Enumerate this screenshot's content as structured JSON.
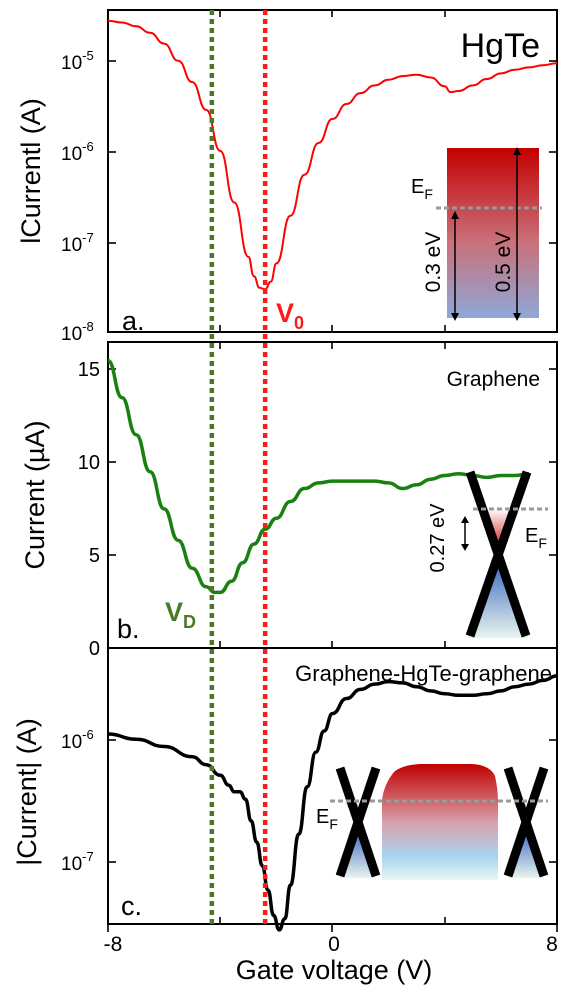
{
  "x_axis": {
    "label": "Gate voltage (V)",
    "range": [
      -8,
      8
    ],
    "ticks": [
      -8,
      -4,
      0,
      4,
      8
    ],
    "tick_labels": [
      "-8",
      "0",
      "8"
    ]
  },
  "reference_lines": {
    "vd": {
      "x": -4.3,
      "color": "#4a7a25"
    },
    "v0": {
      "x": -2.4,
      "color": "#ff1a1a"
    }
  },
  "panels": {
    "a": {
      "letter": "a.",
      "title": "HgTe",
      "ylabel": "lCurrentl (A)",
      "scale": "log",
      "ylim": [
        1e-08,
        3e-05
      ],
      "color": "#ff0000",
      "tick_labels": {
        "e5": "10",
        "e6": "10",
        "e7": "10",
        "e8": "10"
      },
      "tick_exponents": {
        "e5": "-5",
        "e6": "-6",
        "e7": "-7",
        "e8": "-8"
      },
      "v0_label": "V",
      "v0_sub": "0",
      "inset": {
        "ef": "E",
        "ef_sub": "F",
        "gap1": "0.3 eV",
        "gap2": "0.5 eV"
      }
    },
    "b": {
      "letter": "b.",
      "title": "Graphene",
      "ylabel": "Current (µA)",
      "scale": "linear",
      "ylim": [
        0,
        16.5
      ],
      "color": "#1a8010",
      "tick_labels": {
        "t0": "0",
        "t5": "5",
        "t10": "10",
        "t15": "15"
      },
      "vd_label": "V",
      "vd_sub": "D",
      "inset": {
        "gap": "0.27 eV",
        "ef": "E",
        "ef_sub": "F"
      }
    },
    "c": {
      "letter": "c.",
      "title": "Graphene-HgTe-graphene",
      "ylabel": "|Current| (A)",
      "scale": "log",
      "ylim": [
        3e-08,
        4.2e-06
      ],
      "color": "#000000",
      "tick_labels": {
        "e6": "10",
        "e7": "10"
      },
      "tick_exponents": {
        "e6": "-6",
        "e7": "-7"
      },
      "inset": {
        "ef": "E",
        "ef_sub": "F"
      }
    }
  },
  "chart_data": [
    {
      "type": "line",
      "title": "HgTe",
      "ylabel": "lCurrentl (A)",
      "xlabel": "Gate voltage (V)",
      "yscale": "log",
      "xlim": [
        -8,
        8
      ],
      "ylim": [
        1e-08,
        3e-05
      ],
      "series": [
        {
          "x": [
            -8,
            -7.5,
            -7,
            -6.5,
            -6,
            -5.5,
            -5,
            -4.5,
            -4,
            -3.5,
            -3,
            -2.8,
            -2.6,
            -2.4,
            -2.2,
            -2,
            -1.5,
            -1,
            -0.5,
            0,
            0.5,
            1,
            1.5,
            2,
            2.5,
            3,
            3.5,
            4,
            4.2,
            4.5,
            5,
            5.5,
            6,
            6.5,
            7,
            7.5,
            8
          ],
          "y": [
            2.3e-05,
            2.2e-05,
            2e-05,
            1.7e-05,
            1.3e-05,
            8.5e-06,
            5e-06,
            2.5e-06,
            9e-07,
            2.5e-07,
            6.5e-08,
            4e-08,
            3e-08,
            2.9e-08,
            3.5e-08,
            5.5e-08,
            1.8e-07,
            5e-07,
            1.1e-06,
            2e-06,
            2.9e-06,
            3.8e-06,
            4.6e-06,
            5.3e-06,
            5.8e-06,
            6e-06,
            5.6e-06,
            4.5e-06,
            3.9e-06,
            4e-06,
            4.6e-06,
            5.4e-06,
            6.2e-06,
            6.8e-06,
            7.2e-06,
            7.6e-06,
            8e-06
          ]
        }
      ]
    },
    {
      "type": "line",
      "title": "Graphene",
      "ylabel": "Current (µA)",
      "xlabel": "Gate voltage (V)",
      "xlim": [
        -8,
        8
      ],
      "ylim": [
        0,
        16.5
      ],
      "series": [
        {
          "x": [
            -8,
            -7.5,
            -7,
            -6.5,
            -6,
            -5.5,
            -5,
            -4.5,
            -4.2,
            -4,
            -3.6,
            -3.2,
            -2.8,
            -2.4,
            -2,
            -1.5,
            -1,
            -0.5,
            0,
            0.5,
            1,
            1.5,
            2,
            2.5,
            3,
            3.5,
            4,
            4.5,
            5,
            5.5,
            6,
            6.5,
            7
          ],
          "y": [
            15.5,
            13.5,
            11.5,
            9.5,
            7.5,
            5.8,
            4.3,
            3.3,
            3.0,
            3.0,
            3.6,
            4.6,
            5.6,
            6.4,
            7.0,
            7.9,
            8.6,
            8.9,
            9.0,
            9.0,
            9.0,
            9.0,
            8.9,
            8.6,
            8.8,
            9.1,
            9.3,
            9.4,
            9.3,
            9.2,
            9.3,
            9.3,
            9.4
          ]
        }
      ]
    },
    {
      "type": "line",
      "title": "Graphene-HgTe-graphene",
      "ylabel": "|Current| (A)",
      "xlabel": "Gate voltage (V)",
      "yscale": "log",
      "xlim": [
        -8,
        8
      ],
      "ylim": [
        3e-08,
        4.2e-06
      ],
      "series": [
        {
          "x": [
            -8,
            -7,
            -6,
            -5,
            -4.5,
            -4,
            -3.7,
            -3.5,
            -3.3,
            -3.1,
            -2.9,
            -2.7,
            -2.5,
            -2.3,
            -2.1,
            -1.9,
            -1.7,
            -1.5,
            -1.2,
            -0.9,
            -0.6,
            -0.3,
            0,
            0.5,
            1,
            1.5,
            2,
            2.5,
            3,
            3.5,
            4,
            4.5,
            5,
            5.5,
            6,
            6.5,
            7,
            7.5,
            8
          ],
          "y": [
            9e-07,
            8.2e-07,
            7.2e-07,
            6e-07,
            5.2e-07,
            4.3e-07,
            3.6e-07,
            3.2e-07,
            3.2e-07,
            2.8e-07,
            1.9e-07,
            1.3e-07,
            8.5e-08,
            5.5e-08,
            3.5e-08,
            2.7e-08,
            3.3e-08,
            6e-08,
            1.5e-07,
            3.5e-07,
            6.5e-07,
            9.5e-07,
            1.3e-06,
            1.7e-06,
            2e-06,
            2.2e-06,
            2.3e-06,
            2.25e-06,
            2.1e-06,
            1.95e-06,
            1.85e-06,
            1.8e-06,
            1.8e-06,
            1.85e-06,
            1.95e-06,
            2.1e-06,
            2.2e-06,
            2.35e-06,
            2.55e-06
          ]
        }
      ]
    }
  ]
}
